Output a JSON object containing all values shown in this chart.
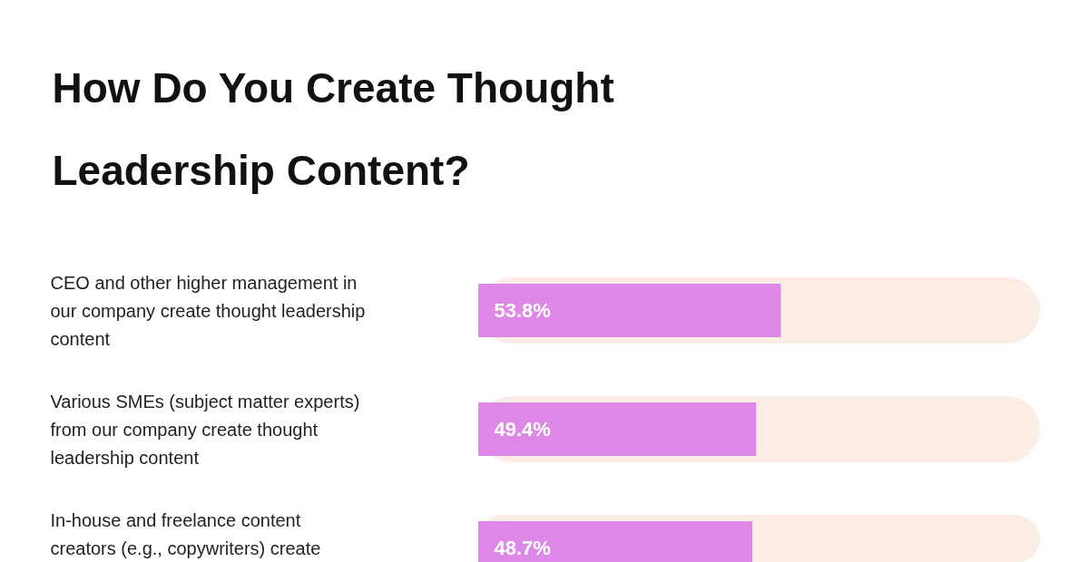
{
  "chart_data": {
    "type": "bar",
    "orientation": "horizontal",
    "title": "How Do You Create Thought Leadership Content?",
    "categories": [
      "CEO and other higher management in our company create thought leadership content",
      "Various SMEs (subject matter experts) from our company create thought leadership content",
      "In-house and freelance content creators (e.g., copywriters) create"
    ],
    "series": [
      {
        "color": "#fcece6",
        "values": [
          100,
          100,
          100
        ]
      },
      {
        "color": "#dd88e6",
        "values": [
          53.8,
          49.4,
          48.7
        ],
        "value_labels": [
          "53.8%",
          "49.4%",
          "48.7%"
        ]
      }
    ]
  }
}
